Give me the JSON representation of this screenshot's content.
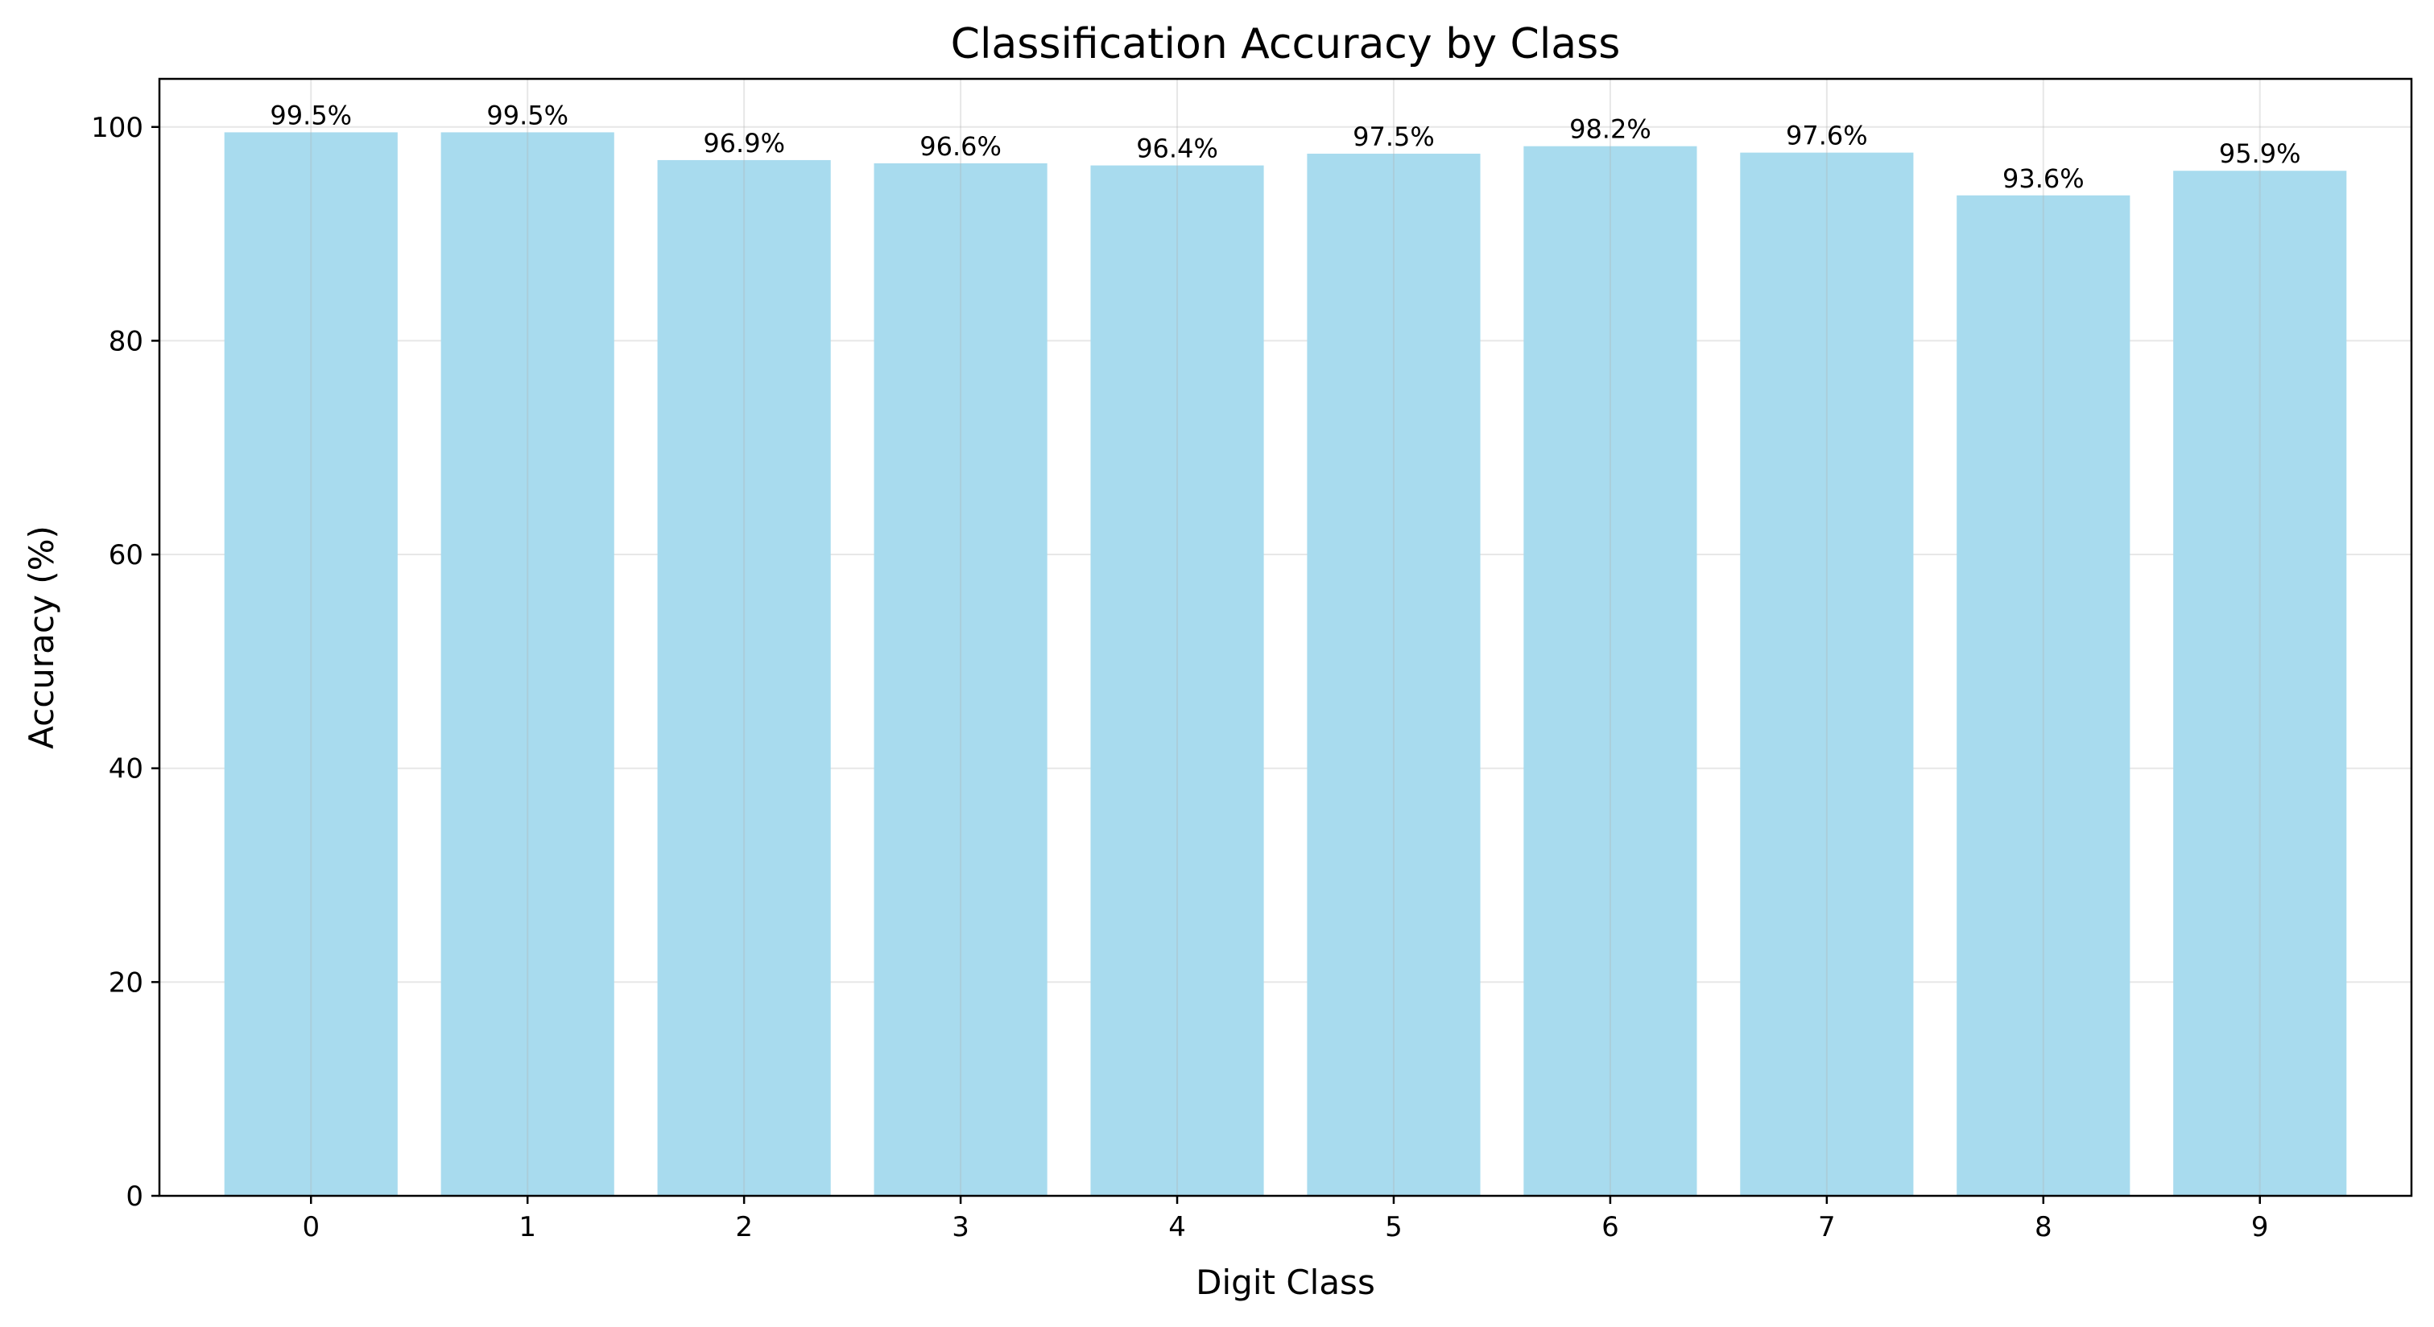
{
  "chart_data": {
    "type": "bar",
    "title": "Classification Accuracy by Class",
    "xlabel": "Digit Class",
    "ylabel": "Accuracy (%)",
    "categories": [
      "0",
      "1",
      "2",
      "3",
      "4",
      "5",
      "6",
      "7",
      "8",
      "9"
    ],
    "values": [
      99.5,
      99.5,
      96.9,
      96.6,
      96.4,
      97.5,
      98.2,
      97.6,
      93.6,
      95.9
    ],
    "data_labels": [
      "99.5%",
      "99.5%",
      "96.9%",
      "96.6%",
      "96.4%",
      "97.5%",
      "98.2%",
      "97.6%",
      "93.6%",
      "95.9%"
    ],
    "ylim": [
      0,
      104.5
    ],
    "yticks": [
      0,
      20,
      40,
      60,
      80,
      100
    ],
    "ytick_labels": [
      "0",
      "20",
      "40",
      "60",
      "80",
      "100"
    ],
    "grid": true,
    "bar_color": "#a8dbee"
  }
}
